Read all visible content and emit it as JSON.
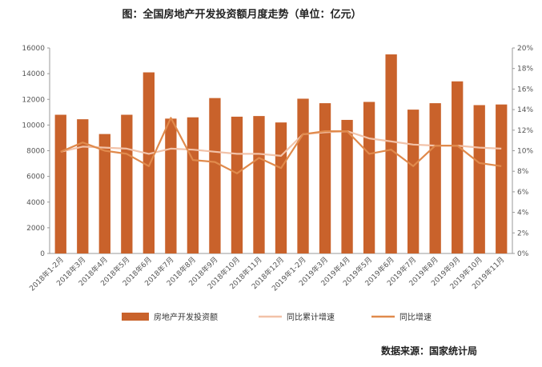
{
  "chart_data": {
    "type": "bar",
    "title": "图：全国房地产开发投资额月度走势（单位：亿元）",
    "categories": [
      "2018年1-2月",
      "2018年3月",
      "2018年4月",
      "2018年5月",
      "2018年6月",
      "2018年7月",
      "2018年8月",
      "2018年9月",
      "2018年10月",
      "2018年11月",
      "2018年12月",
      "2019年1-2月",
      "2019年3月",
      "2019年4月",
      "2019年5月",
      "2019年6月",
      "2019年7月",
      "2019年8月",
      "2019年9月",
      "2019年10月",
      "2019年11月"
    ],
    "series": [
      {
        "name": "房地产开发投资额",
        "type": "bar",
        "axis": "left",
        "color": "#c9622b",
        "values": [
          10800,
          10450,
          9300,
          10800,
          14100,
          10500,
          10600,
          12100,
          10650,
          10700,
          10200,
          12050,
          11700,
          10400,
          11800,
          15500,
          11200,
          11700,
          13400,
          11550,
          11600
        ]
      },
      {
        "name": "同比累计增速",
        "type": "line",
        "axis": "right",
        "color": "#f2c2a8",
        "values": [
          9.9,
          10.4,
          10.3,
          10.2,
          9.7,
          10.2,
          10.1,
          9.9,
          9.7,
          9.7,
          9.5,
          11.6,
          11.8,
          11.9,
          11.2,
          10.9,
          10.6,
          10.5,
          10.5,
          10.3,
          10.2
        ]
      },
      {
        "name": "同比增速",
        "type": "line",
        "axis": "right",
        "color": "#e08a4c",
        "values": [
          9.9,
          10.8,
          10.0,
          9.7,
          8.5,
          13.2,
          9.1,
          8.9,
          7.8,
          9.3,
          8.3,
          11.6,
          11.9,
          11.9,
          9.7,
          10.1,
          8.5,
          10.5,
          10.5,
          8.8,
          8.5
        ]
      }
    ],
    "y_left": {
      "min": 0,
      "max": 16000,
      "step": 2000,
      "ticks": [
        "0",
        "2000",
        "4000",
        "6000",
        "8000",
        "10000",
        "12000",
        "14000",
        "16000"
      ]
    },
    "y_right": {
      "min": 0,
      "max": 20,
      "step": 2,
      "ticks": [
        "0%",
        "2%",
        "4%",
        "6%",
        "8%",
        "10%",
        "12%",
        "14%",
        "16%",
        "18%",
        "20%"
      ]
    },
    "grid": false,
    "legend_position": "bottom"
  },
  "source_text": "数据来源：国家统计局",
  "colors": {
    "bar": "#c9622b",
    "line_cumulative": "#f2c2a8",
    "line_monthly": "#e08a4c",
    "axis": "#999999"
  }
}
